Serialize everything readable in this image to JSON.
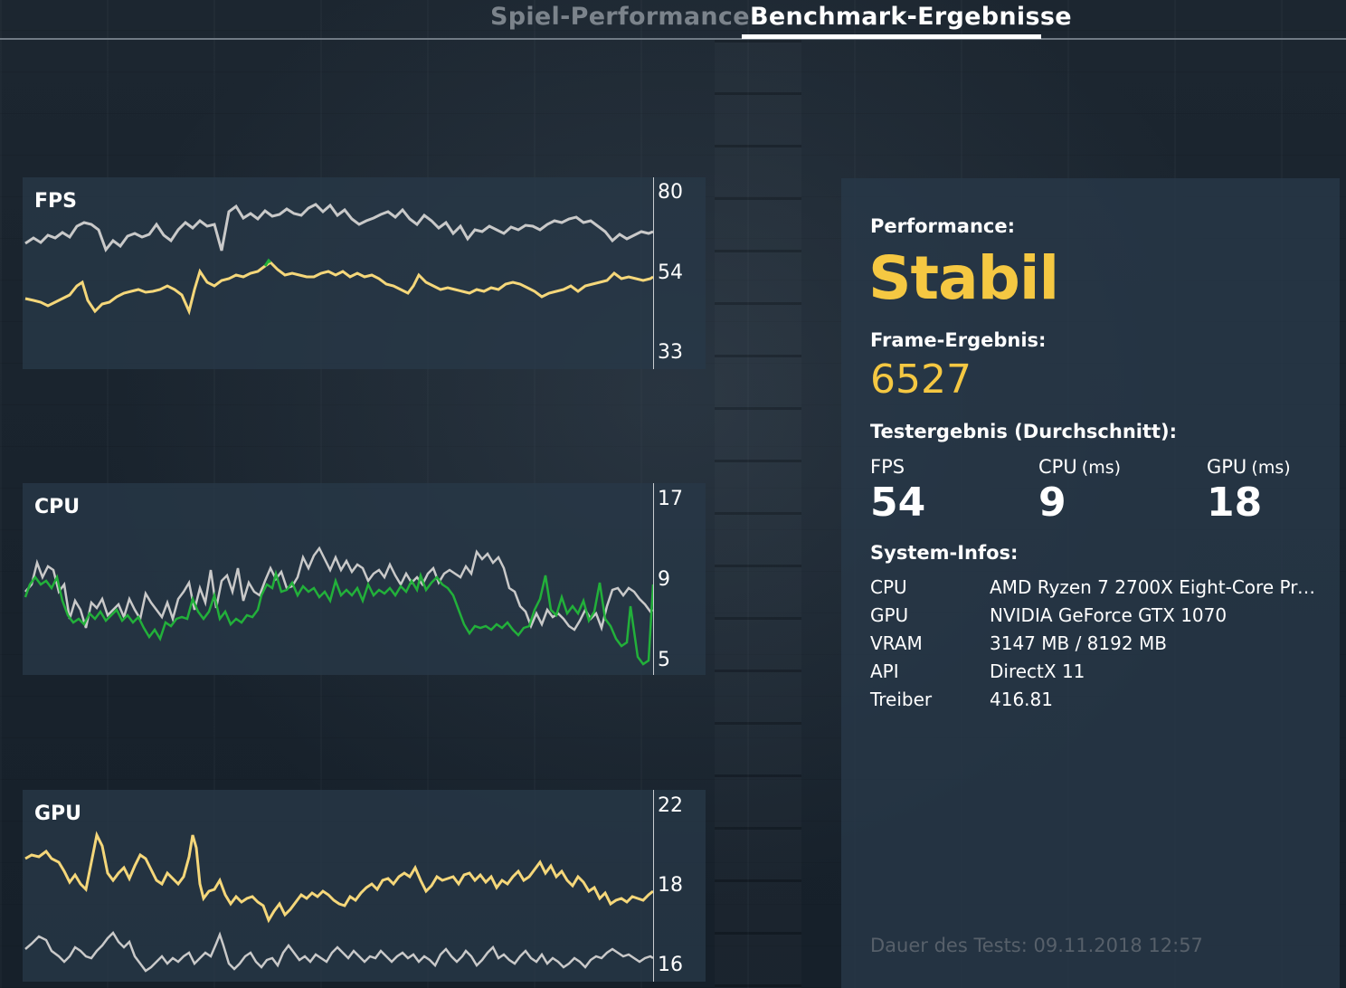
{
  "tabs": [
    {
      "label": "Spiel-Performance",
      "active": false
    },
    {
      "label": "Benchmark-Ergebnisse",
      "active": true
    }
  ],
  "graphs": {
    "fps": {
      "title": "FPS",
      "ticks": [
        "80",
        "54",
        "33"
      ]
    },
    "cpu": {
      "title": "CPU",
      "ticks": [
        "17",
        "9",
        "5"
      ]
    },
    "gpu": {
      "title": "GPU",
      "ticks": [
        "22",
        "18",
        "16"
      ]
    }
  },
  "info": {
    "performance_label": "Performance:",
    "performance_value": "Stabil",
    "frame_label": "Frame-Ergebnis:",
    "frame_value": "6527",
    "avg_label": "Testergebnis (Durchschnitt):",
    "stats": [
      {
        "name": "FPS",
        "unit": "",
        "value": "54"
      },
      {
        "name": "CPU",
        "unit": "(ms)",
        "value": "9"
      },
      {
        "name": "GPU",
        "unit": "(ms)",
        "value": "18"
      }
    ],
    "system_label": "System-Infos:",
    "system": [
      {
        "key": "CPU",
        "value": "AMD Ryzen 7 2700X Eight-Core Proc..."
      },
      {
        "key": "GPU",
        "value": "NVIDIA GeForce GTX 1070"
      },
      {
        "key": "VRAM",
        "value": "3147 MB / 8192 MB"
      },
      {
        "key": "API",
        "value": "DirectX 11"
      },
      {
        "key": "Treiber",
        "value": "416.81"
      }
    ],
    "duration": "Dauer des Tests: 09.11.2018 12:57"
  },
  "colors": {
    "yellow": "#f5d77a",
    "white_line": "#c9c9c9",
    "green_line": "#22b03a",
    "accent": "#f5c842"
  }
}
